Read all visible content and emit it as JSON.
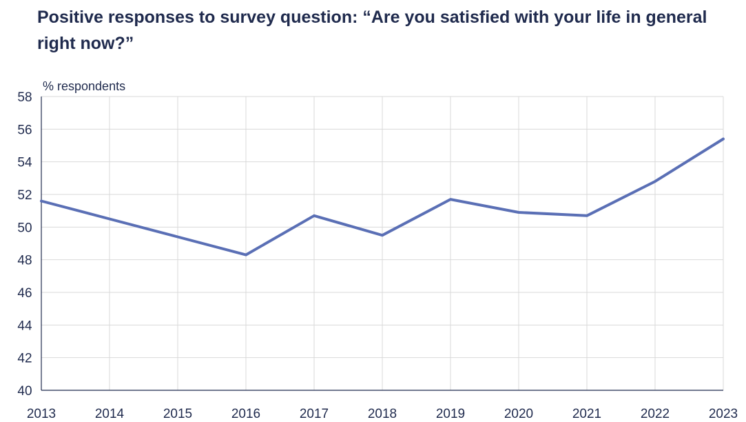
{
  "chart_data": {
    "type": "line",
    "title": "Positive responses to survey question: “Are you satisfied with your life in general right now?”",
    "ylabel": "% respondents",
    "xlabel": "",
    "x": [
      "2013",
      "2014",
      "2015",
      "2016",
      "2017",
      "2018",
      "2019",
      "2020",
      "2021",
      "2022",
      "2023"
    ],
    "series": [
      {
        "values": [
          51.6,
          50.5,
          49.4,
          48.3,
          50.7,
          49.5,
          51.7,
          50.9,
          50.7,
          52.8,
          55.4
        ]
      }
    ],
    "ylim": [
      40,
      58
    ],
    "yticks": [
      "40",
      "42",
      "44",
      "46",
      "48",
      "50",
      "52",
      "54",
      "56",
      "58"
    ],
    "grid": true,
    "colors": {
      "line": "#5a6fb5",
      "grid": "#d9d9d9",
      "axis": "#1f2a4d",
      "text": "#1f2a4d"
    }
  }
}
